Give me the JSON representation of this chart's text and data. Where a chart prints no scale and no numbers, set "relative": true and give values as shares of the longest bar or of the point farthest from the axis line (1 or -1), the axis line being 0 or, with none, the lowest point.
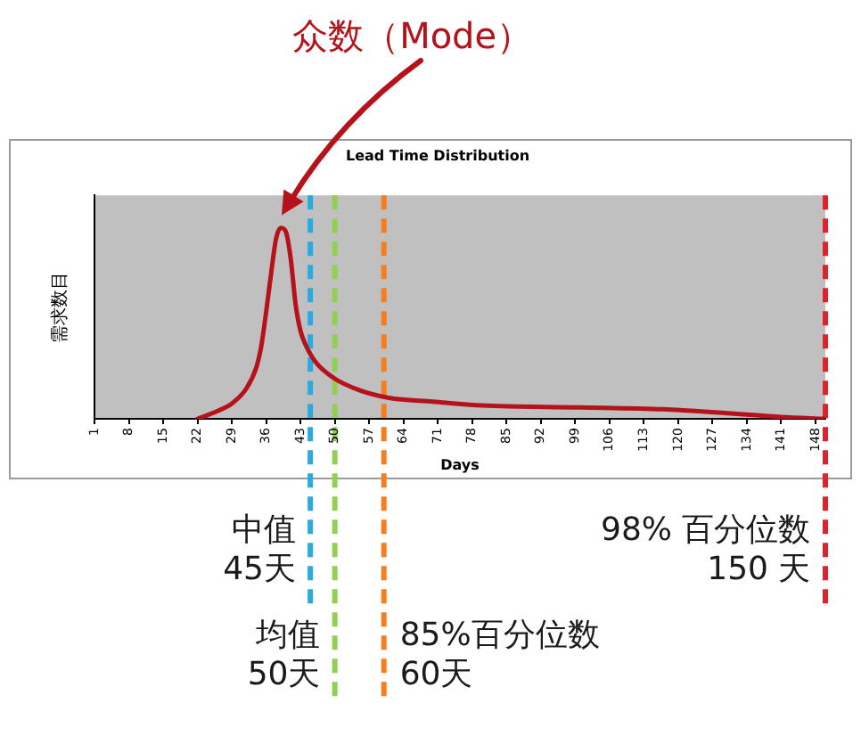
{
  "chart_data": {
    "type": "line",
    "title": "Lead Time Distribution",
    "xlabel": "Days",
    "ylabel": "需求数目",
    "relative": true,
    "x": [
      22,
      26,
      29,
      32,
      34,
      35,
      36,
      37,
      38,
      39,
      40,
      41,
      42,
      43,
      44,
      46,
      50,
      55,
      61,
      70,
      80,
      100,
      117,
      130,
      141,
      150
    ],
    "values": [
      0,
      0.04,
      0.08,
      0.16,
      0.27,
      0.38,
      0.56,
      0.76,
      0.94,
      1,
      0.98,
      0.84,
      0.6,
      0.46,
      0.39,
      0.3,
      0.21,
      0.15,
      0.11,
      0.09,
      0.07,
      0.06,
      0.05,
      0.03,
      0.01,
      0
    ],
    "color": "#b5121b",
    "xlim": [
      1,
      150
    ],
    "xticks": [
      1,
      8,
      15,
      22,
      29,
      36,
      43,
      50,
      57,
      64,
      71,
      78,
      85,
      92,
      99,
      106,
      113,
      120,
      127,
      134,
      141,
      148
    ],
    "ref_lines": [
      {
        "axis": "x",
        "value": 45,
        "label": "中值\n45天",
        "color": "#29abe2",
        "line_style": "dashed"
      },
      {
        "axis": "x",
        "value": 50,
        "label": "均值\n50天",
        "color": "#92d050",
        "line_style": "dashed"
      },
      {
        "axis": "x",
        "value": 60,
        "label": "85%百分位数\n60天",
        "color": "#f57f20",
        "line_style": "dashed"
      },
      {
        "axis": "x",
        "value": 150,
        "label": "98% 百分位数\n150 天",
        "color": "#e3202a",
        "line_style": "dashed"
      }
    ],
    "annotations": [
      "众数（Mode）"
    ]
  }
}
